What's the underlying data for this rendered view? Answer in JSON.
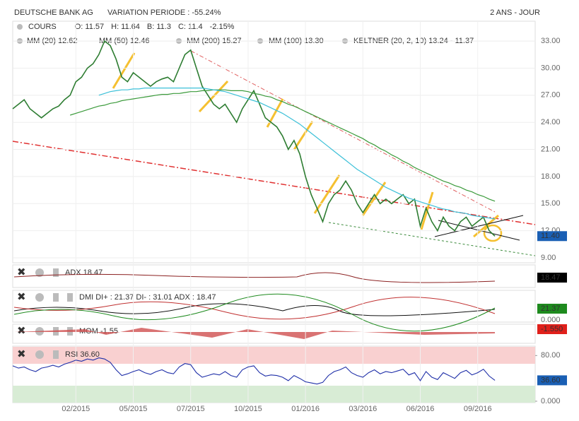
{
  "chart_data": {
    "type": "line",
    "title": "DEUTSCHE BANK AG",
    "subtitle": "VARIATION PERIODE : -55.24%",
    "period": "2 ANS - JOUR",
    "legend_row1": [
      {
        "text": "COURS",
        "color": "#333333"
      },
      {
        "text": "O: 11.57",
        "color": "#333333"
      },
      {
        "text": "H: 11.64",
        "color": "#333333"
      },
      {
        "text": "B: 11.3",
        "color": "#333333"
      },
      {
        "text": "C: 11.4",
        "color": "#333333"
      },
      {
        "text": "-2.15%",
        "color": "#e0201b"
      }
    ],
    "legend_row2": [
      {
        "text": "MM (20) 12.62",
        "color": "#d83a2a"
      },
      {
        "text": "MM (50) 12.46",
        "color": "#f0a020"
      },
      {
        "text": "MM (200) 15.27",
        "color": "#3a9a3a"
      },
      {
        "text": "MM (100) 13.30",
        "color": "#3cc0d8"
      },
      {
        "text": "KELTNER (20, 2, 10) 13.24 - 11.37",
        "color": "#1e7a1e"
      }
    ],
    "categories": [
      null,
      null,
      null,
      null,
      null,
      null,
      null,
      null,
      null,
      null,
      null,
      "02/2015",
      null,
      null,
      null,
      null,
      null,
      null,
      null,
      null,
      null,
      "05/2015",
      null,
      null,
      null,
      null,
      null,
      null,
      null,
      null,
      null,
      "07/2015",
      null,
      null,
      null,
      null,
      null,
      null,
      null,
      null,
      null,
      "10/2015",
      null,
      null,
      null,
      null,
      null,
      null,
      null,
      null,
      null,
      "01/2016",
      null,
      null,
      null,
      null,
      null,
      null,
      null,
      null,
      null,
      "03/2016",
      null,
      null,
      null,
      null,
      null,
      null,
      null,
      null,
      null,
      "06/2016",
      null,
      null,
      null,
      null,
      null,
      null,
      null,
      null,
      null,
      "09/2016",
      null,
      null,
      null
    ],
    "series": [
      {
        "name": "COURS",
        "color": "#2e7d32",
        "values": [
          25.5,
          26,
          26.5,
          25.5,
          25,
          24.5,
          25,
          25.5,
          25.8,
          26.5,
          27,
          28.5,
          29,
          30,
          30.5,
          31.5,
          33,
          32.5,
          31,
          29,
          28.5,
          29.5,
          29,
          28.5,
          28,
          28.5,
          28.8,
          29,
          28.5,
          30,
          31.5,
          32,
          30,
          28,
          27,
          26,
          25.5,
          26,
          25,
          24,
          25.5,
          26.5,
          27.5,
          26,
          24.5,
          24,
          23.5,
          22.5,
          21,
          22,
          20.5,
          18,
          16,
          14.5,
          13,
          15,
          16,
          16.5,
          17.5,
          16.5,
          15,
          14,
          15,
          16,
          15,
          15.5,
          15,
          15.5,
          16,
          15,
          15.5,
          12.5,
          14.5,
          13,
          12,
          13.5,
          12.5,
          12,
          13,
          13.5,
          12.5,
          13,
          13.5,
          12,
          11.4
        ]
      },
      {
        "name": "MM (200)",
        "color": "#3a9a3a",
        "values": [
          null,
          null,
          null,
          null,
          null,
          null,
          null,
          null,
          null,
          null,
          24.8,
          25.0,
          25.2,
          25.4,
          25.6,
          25.8,
          25.9,
          26.1,
          26.2,
          26.4,
          26.5,
          26.6,
          26.7,
          26.8,
          26.9,
          27.0,
          27.1,
          27.1,
          27.2,
          27.2,
          27.3,
          27.4,
          27.4,
          27.5,
          27.5,
          27.6,
          27.6,
          27.6,
          27.5,
          27.5,
          27.5,
          27.4,
          27.2,
          27.1,
          26.9,
          26.8,
          26.5,
          26.3,
          26.0,
          25.8,
          25.5,
          25.2,
          24.9,
          24.6,
          24.3,
          24.0,
          23.7,
          23.4,
          23.1,
          22.8,
          22.5,
          22.2,
          21.8,
          21.5,
          21.1,
          20.8,
          20.4,
          20.1,
          19.7,
          19.4,
          19.0,
          18.7,
          18.4,
          18.1,
          17.8,
          17.5,
          17.3,
          17.0,
          16.8,
          16.5,
          16.3,
          16.0,
          15.8,
          15.5,
          15.27
        ]
      },
      {
        "name": "MM (100)",
        "color": "#3cc0d8",
        "values": [
          null,
          null,
          null,
          null,
          null,
          null,
          null,
          null,
          null,
          null,
          null,
          null,
          null,
          null,
          null,
          27.0,
          27.2,
          27.4,
          27.5,
          27.6,
          27.6,
          27.7,
          27.7,
          27.8,
          27.8,
          27.8,
          27.8,
          27.8,
          27.8,
          27.8,
          27.8,
          27.8,
          27.8,
          27.8,
          27.7,
          27.6,
          27.5,
          27.4,
          27.2,
          27.0,
          26.8,
          26.6,
          26.4,
          26.2,
          25.9,
          25.6,
          25.3,
          25.0,
          24.6,
          24.2,
          23.8,
          23.3,
          22.8,
          22.3,
          21.8,
          21.3,
          20.8,
          20.3,
          19.8,
          19.3,
          18.8,
          18.4,
          18.0,
          17.6,
          17.2,
          16.8,
          16.5,
          16.2,
          15.9,
          15.6,
          15.4,
          15.2,
          15.0,
          14.8,
          14.6,
          14.4,
          14.3,
          14.1,
          14.0,
          13.9,
          13.7,
          13.6,
          13.5,
          13.4,
          13.3
        ]
      }
    ],
    "ylim": [
      8.45,
      35.2
    ],
    "yticks": [
      {
        "value": 33,
        "label": "33.00"
      },
      {
        "value": 30,
        "label": "30.00"
      },
      {
        "value": 27,
        "label": "27.00"
      },
      {
        "value": 24,
        "label": "24.00"
      },
      {
        "value": 21,
        "label": "21.00"
      },
      {
        "value": 18,
        "label": "18.00"
      },
      {
        "value": 15,
        "label": "15.00"
      },
      {
        "value": 12,
        "label": "12.00"
      },
      {
        "value": 9,
        "label": "9.00"
      }
    ],
    "grid": true,
    "last_label": "11.40",
    "last_color": "#1a5fb4",
    "adx": {
      "label": "ADX 18.47",
      "tag": "18.47",
      "tag_color": "#000000"
    },
    "dmi": {
      "label": "DMI DI+ : 21.37 DI- : 31.01 ADX : 18.47",
      "tag": "21.37",
      "tag_color": "#1e8a1e",
      "tick": "0.000"
    },
    "mom": {
      "label": "MOM -1.55",
      "tag": "-1.550",
      "tag_color": "#e0201b"
    },
    "rsi": {
      "label": "RSI 36.60",
      "color": "#1f2fa8",
      "tag": "36.60",
      "tag_color": "#1a5fb4",
      "ylim": [
        -2.5,
        96.5
      ],
      "yticks": [
        {
          "value": 80,
          "label": "80.00"
        },
        {
          "value": 0,
          "label": "0.000"
        }
      ],
      "values": [
        62,
        58,
        60,
        55,
        52,
        58,
        60,
        63,
        60,
        65,
        68,
        72,
        70,
        74,
        72,
        76,
        74,
        68,
        55,
        45,
        48,
        52,
        55,
        50,
        47,
        52,
        55,
        50,
        48,
        60,
        66,
        64,
        50,
        42,
        45,
        48,
        46,
        52,
        45,
        42,
        55,
        60,
        62,
        50,
        44,
        46,
        45,
        42,
        36,
        45,
        40,
        34,
        32,
        30,
        33,
        45,
        52,
        55,
        60,
        50,
        45,
        42,
        50,
        55,
        48,
        52,
        50,
        53,
        56,
        46,
        50,
        36,
        52,
        42,
        38,
        50,
        45,
        40,
        50,
        54,
        46,
        50,
        56,
        44,
        36.6
      ]
    }
  }
}
